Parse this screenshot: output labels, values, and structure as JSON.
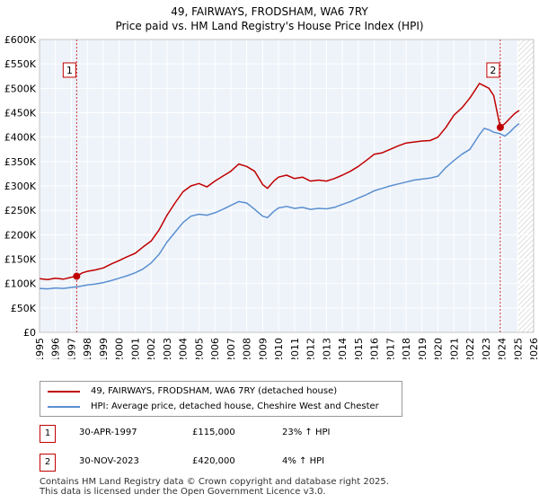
{
  "chart_data": {
    "type": "line",
    "title": "49, FAIRWAYS, FRODSHAM, WA6 7RY",
    "subtitle": "Price paid vs. HM Land Registry's House Price Index (HPI)",
    "xlim": [
      1995,
      2026
    ],
    "ylim": [
      0,
      600000
    ],
    "x_ticks": [
      "1995",
      "1996",
      "1997",
      "1998",
      "1999",
      "2000",
      "2001",
      "2002",
      "2003",
      "2004",
      "2005",
      "2006",
      "2007",
      "2008",
      "2009",
      "2010",
      "2011",
      "2012",
      "2013",
      "2014",
      "2015",
      "2016",
      "2017",
      "2018",
      "2019",
      "2020",
      "2021",
      "2022",
      "2023",
      "2024",
      "2025",
      "2026"
    ],
    "y_ticks": [
      {
        "value": 0,
        "label": "£0"
      },
      {
        "value": 50000,
        "label": "£50K"
      },
      {
        "value": 100000,
        "label": "£100K"
      },
      {
        "value": 150000,
        "label": "£150K"
      },
      {
        "value": 200000,
        "label": "£200K"
      },
      {
        "value": 250000,
        "label": "£250K"
      },
      {
        "value": 300000,
        "label": "£300K"
      },
      {
        "value": 350000,
        "label": "£350K"
      },
      {
        "value": 400000,
        "label": "£400K"
      },
      {
        "value": 450000,
        "label": "£450K"
      },
      {
        "value": 500000,
        "label": "£500K"
      },
      {
        "value": 550000,
        "label": "£550K"
      },
      {
        "value": 600000,
        "label": "£600K"
      }
    ],
    "forecast_start": 2025.0,
    "series": [
      {
        "name": "49, FAIRWAYS, FRODSHAM, WA6 7RY (detached house)",
        "color": "#c00000",
        "x": [
          1995.0,
          1995.5,
          1996.0,
          1996.5,
          1997.0,
          1997.33,
          1997.7,
          1998.0,
          1998.5,
          1999.0,
          1999.5,
          2000.0,
          2000.5,
          2001.0,
          2001.5,
          2002.0,
          2002.5,
          2003.0,
          2003.5,
          2004.0,
          2004.5,
          2005.0,
          2005.5,
          2006.0,
          2006.5,
          2007.0,
          2007.5,
          2008.0,
          2008.5,
          2009.0,
          2009.3,
          2009.7,
          2010.0,
          2010.5,
          2011.0,
          2011.5,
          2012.0,
          2012.5,
          2013.0,
          2013.5,
          2014.0,
          2014.5,
          2015.0,
          2015.5,
          2016.0,
          2016.5,
          2017.0,
          2017.5,
          2018.0,
          2018.5,
          2019.0,
          2019.5,
          2020.0,
          2020.5,
          2021.0,
          2021.5,
          2022.0,
          2022.3,
          2022.6,
          2022.9,
          2023.2,
          2023.5,
          2023.91,
          2024.2,
          2024.5,
          2024.8,
          2025.1
        ],
        "values": [
          110000,
          108000,
          111000,
          109000,
          113000,
          115000,
          122000,
          125000,
          128000,
          132000,
          140000,
          147000,
          155000,
          162000,
          175000,
          187000,
          210000,
          240000,
          265000,
          288000,
          300000,
          305000,
          298000,
          310000,
          320000,
          330000,
          345000,
          340000,
          330000,
          303000,
          295000,
          310000,
          318000,
          322000,
          315000,
          318000,
          310000,
          312000,
          310000,
          315000,
          322000,
          330000,
          340000,
          352000,
          365000,
          368000,
          375000,
          382000,
          388000,
          390000,
          392000,
          393000,
          400000,
          420000,
          445000,
          460000,
          480000,
          495000,
          510000,
          505000,
          500000,
          485000,
          420000,
          428000,
          438000,
          448000,
          455000
        ]
      },
      {
        "name": "HPI: Average price, detached house, Cheshire West and Chester",
        "color": "#5a8fd0",
        "x": [
          1995.0,
          1995.5,
          1996.0,
          1996.5,
          1997.0,
          1997.5,
          1998.0,
          1998.5,
          1999.0,
          1999.5,
          2000.0,
          2000.5,
          2001.0,
          2001.5,
          2002.0,
          2002.5,
          2003.0,
          2003.5,
          2004.0,
          2004.5,
          2005.0,
          2005.5,
          2006.0,
          2006.5,
          2007.0,
          2007.5,
          2008.0,
          2008.5,
          2009.0,
          2009.3,
          2009.7,
          2010.0,
          2010.5,
          2011.0,
          2011.5,
          2012.0,
          2012.5,
          2013.0,
          2013.5,
          2014.0,
          2014.5,
          2015.0,
          2015.5,
          2016.0,
          2016.5,
          2017.0,
          2017.5,
          2018.0,
          2018.5,
          2019.0,
          2019.5,
          2020.0,
          2020.5,
          2021.0,
          2021.5,
          2022.0,
          2022.3,
          2022.6,
          2022.9,
          2023.2,
          2023.5,
          2023.9,
          2024.2,
          2024.5,
          2024.8,
          2025.1
        ],
        "values": [
          90000,
          89000,
          91000,
          90000,
          92000,
          94000,
          97000,
          99000,
          102000,
          106000,
          111000,
          116000,
          122000,
          130000,
          142000,
          160000,
          185000,
          205000,
          225000,
          238000,
          242000,
          240000,
          245000,
          252000,
          260000,
          268000,
          265000,
          252000,
          238000,
          235000,
          248000,
          255000,
          258000,
          254000,
          256000,
          252000,
          254000,
          253000,
          256000,
          262000,
          268000,
          275000,
          282000,
          290000,
          295000,
          300000,
          304000,
          308000,
          312000,
          314000,
          316000,
          320000,
          338000,
          352000,
          365000,
          375000,
          390000,
          405000,
          418000,
          415000,
          410000,
          407000,
          402000,
          410000,
          420000,
          428000
        ]
      }
    ],
    "annotations": [
      {
        "label": "1",
        "x": 1997.33,
        "value": 115000
      },
      {
        "label": "2",
        "x": 2023.91,
        "value": 420000
      }
    ]
  },
  "legend": {
    "series1_label": "49, FAIRWAYS, FRODSHAM, WA6 7RY (detached house)",
    "series2_label": "HPI: Average price, detached house, Cheshire West and Chester"
  },
  "transactions": [
    {
      "badge": "1",
      "date": "30-APR-1997",
      "price": "£115,000",
      "hpi": "23% ↑ HPI"
    },
    {
      "badge": "2",
      "date": "30-NOV-2023",
      "price": "£420,000",
      "hpi": "4% ↑ HPI"
    }
  ],
  "footer": {
    "line1": "Contains HM Land Registry data © Crown copyright and database right 2025.",
    "line2": "This data is licensed under the Open Government Licence v3.0."
  },
  "colors": {
    "red": "#c00000",
    "blue": "#5a8fd0",
    "plot_bg": "#eef3fa",
    "grid": "#ffffff"
  }
}
